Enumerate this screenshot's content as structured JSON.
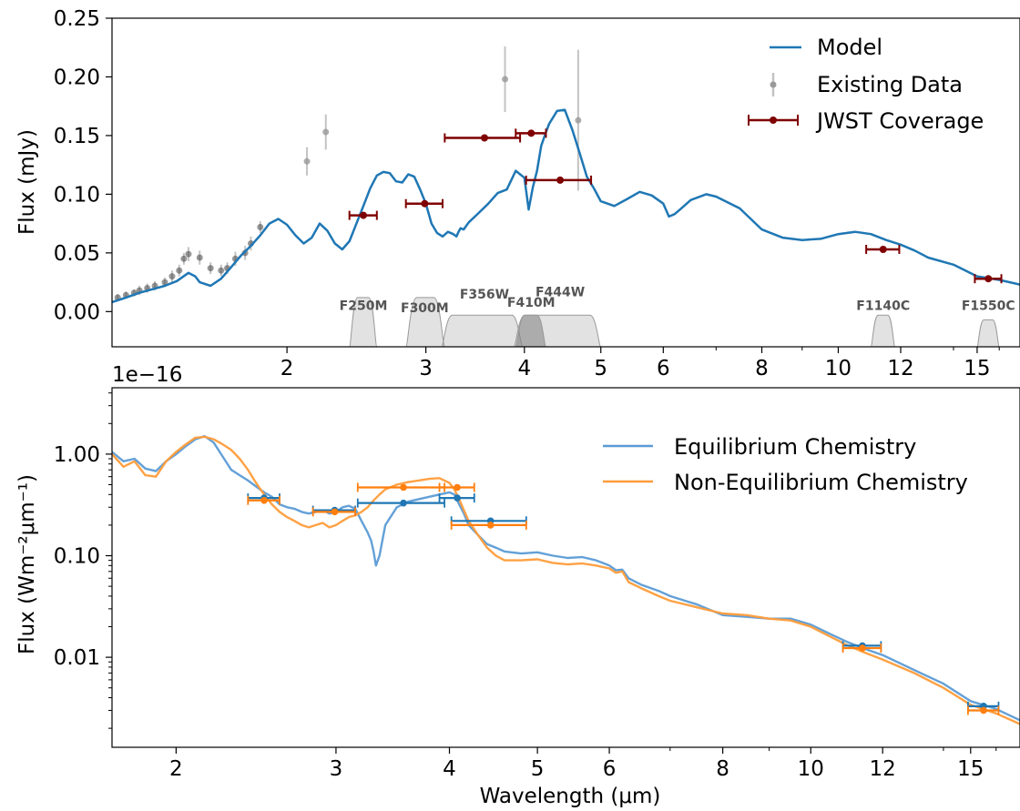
{
  "chart_data": [
    {
      "type": "line",
      "xscale": "log",
      "xlim": [
        1.2,
        17
      ],
      "ylim": [
        -0.03,
        0.25
      ],
      "xticks": [
        2,
        3,
        4,
        5,
        6,
        8,
        10,
        12,
        15
      ],
      "xtick_labels": [
        "2",
        "3",
        "4",
        "5",
        "6",
        "8",
        "10",
        "12",
        "15"
      ],
      "yticks": [
        0.0,
        0.05,
        0.1,
        0.15,
        0.2,
        0.25
      ],
      "ytick_labels": [
        "0.00",
        "0.05",
        "0.10",
        "0.15",
        "0.20",
        "0.25"
      ],
      "ylabel": "Flux (mJy)",
      "legend_position": "upper-right",
      "legend": [
        {
          "label": "Model",
          "kind": "line",
          "color": "#1f77b4"
        },
        {
          "label": "Existing Data",
          "kind": "errorbar",
          "color": "#a0a0a0"
        },
        {
          "label": "JWST Coverage",
          "kind": "xerrorbar",
          "color": "#7f0000"
        }
      ],
      "series": [
        {
          "name": "Model",
          "color": "#1f77b4",
          "x": [
            1.2,
            1.25,
            1.3,
            1.35,
            1.4,
            1.45,
            1.5,
            1.53,
            1.55,
            1.6,
            1.65,
            1.7,
            1.75,
            1.8,
            1.85,
            1.9,
            1.95,
            2.0,
            2.05,
            2.1,
            2.15,
            2.2,
            2.25,
            2.3,
            2.35,
            2.4,
            2.45,
            2.5,
            2.55,
            2.6,
            2.65,
            2.7,
            2.75,
            2.8,
            2.85,
            2.9,
            2.95,
            3.0,
            3.05,
            3.1,
            3.15,
            3.2,
            3.25,
            3.28,
            3.3,
            3.32,
            3.35,
            3.4,
            3.5,
            3.6,
            3.7,
            3.8,
            3.9,
            4.0,
            4.05,
            4.1,
            4.15,
            4.2,
            4.25,
            4.3,
            4.4,
            4.5,
            4.6,
            4.7,
            4.8,
            4.9,
            5.0,
            5.2,
            5.4,
            5.6,
            5.8,
            6.0,
            6.1,
            6.2,
            6.3,
            6.5,
            6.8,
            7.0,
            7.5,
            8.0,
            8.5,
            9.0,
            9.5,
            10.0,
            10.5,
            11.0,
            11.5,
            12.0,
            12.5,
            13.0,
            14.0,
            15.0,
            16.0,
            17.0
          ],
          "y": [
            0.008,
            0.012,
            0.016,
            0.019,
            0.022,
            0.026,
            0.033,
            0.03,
            0.025,
            0.022,
            0.028,
            0.038,
            0.048,
            0.056,
            0.065,
            0.075,
            0.079,
            0.074,
            0.065,
            0.058,
            0.063,
            0.075,
            0.069,
            0.058,
            0.053,
            0.06,
            0.075,
            0.09,
            0.105,
            0.116,
            0.119,
            0.118,
            0.111,
            0.11,
            0.117,
            0.115,
            0.104,
            0.092,
            0.075,
            0.067,
            0.064,
            0.068,
            0.066,
            0.064,
            0.068,
            0.071,
            0.07,
            0.076,
            0.084,
            0.092,
            0.101,
            0.104,
            0.12,
            0.114,
            0.087,
            0.106,
            0.12,
            0.141,
            0.151,
            0.16,
            0.171,
            0.172,
            0.155,
            0.135,
            0.115,
            0.105,
            0.094,
            0.09,
            0.096,
            0.102,
            0.099,
            0.092,
            0.081,
            0.083,
            0.087,
            0.095,
            0.1,
            0.098,
            0.088,
            0.07,
            0.063,
            0.061,
            0.062,
            0.066,
            0.068,
            0.066,
            0.061,
            0.057,
            0.052,
            0.046,
            0.04,
            0.03,
            0.027,
            0.023
          ]
        }
      ],
      "existing_data": {
        "x": [
          1.22,
          1.25,
          1.28,
          1.3,
          1.33,
          1.36,
          1.4,
          1.43,
          1.46,
          1.48,
          1.5,
          1.55,
          1.6,
          1.65,
          1.68,
          1.72,
          1.77,
          1.8,
          1.85,
          2.12,
          2.24,
          3.78,
          4.68
        ],
        "y": [
          0.012,
          0.014,
          0.016,
          0.018,
          0.02,
          0.022,
          0.025,
          0.03,
          0.035,
          0.045,
          0.049,
          0.046,
          0.037,
          0.035,
          0.037,
          0.045,
          0.05,
          0.058,
          0.072,
          0.128,
          0.153,
          0.198,
          0.163
        ],
        "yerr": [
          0.003,
          0.003,
          0.003,
          0.004,
          0.004,
          0.004,
          0.004,
          0.005,
          0.005,
          0.005,
          0.006,
          0.006,
          0.005,
          0.005,
          0.005,
          0.006,
          0.006,
          0.006,
          0.005,
          0.012,
          0.015,
          0.028,
          0.06
        ]
      },
      "jwst_coverage": {
        "x": [
          2.5,
          2.99,
          3.56,
          4.08,
          4.44,
          11.4,
          15.5
        ],
        "y": [
          0.082,
          0.092,
          0.148,
          0.152,
          0.112,
          0.053,
          0.028
        ],
        "xerr_low": [
          0.1,
          0.16,
          0.39,
          0.18,
          0.42,
          0.55,
          0.6
        ],
        "xerr_high": [
          0.1,
          0.16,
          0.39,
          0.18,
          0.42,
          0.55,
          0.6
        ]
      },
      "filters": [
        {
          "name": "F250M",
          "lo": 2.4,
          "hi": 2.6,
          "label_x": 2.5
        },
        {
          "name": "F300M",
          "lo": 2.83,
          "hi": 3.17,
          "label_x": 2.99
        },
        {
          "name": "F356W",
          "lo": 3.14,
          "hi": 3.98,
          "label_x": 3.56
        },
        {
          "name": "F410M",
          "lo": 3.9,
          "hi": 4.26,
          "label_x": 4.08
        },
        {
          "name": "F444W",
          "lo": 3.88,
          "hi": 5.0,
          "label_x": 4.44
        },
        {
          "name": "F1140C",
          "lo": 11.0,
          "hi": 11.8,
          "label_x": 11.4
        },
        {
          "name": "F1550C",
          "lo": 15.0,
          "hi": 16.0,
          "label_x": 15.5
        }
      ]
    },
    {
      "type": "line",
      "xscale": "log",
      "yscale": "log",
      "xlim": [
        1.7,
        17
      ],
      "ylim": [
        0.0013,
        4.5
      ],
      "xticks": [
        2,
        3,
        4,
        5,
        6,
        8,
        10,
        12,
        15
      ],
      "xtick_labels": [
        "2",
        "3",
        "4",
        "5",
        "6",
        "8",
        "10",
        "12",
        "15"
      ],
      "yticks": [
        0.01,
        0.1,
        1.0
      ],
      "ytick_labels": [
        "0.01",
        "0.10",
        "1.00"
      ],
      "offset_text": "1e−16",
      "xlabel": "Wavelength (μm)",
      "ylabel": "Flux (Wm⁻²μm⁻¹)",
      "legend_position": "upper-right",
      "series": [
        {
          "name": "Equilibrium Chemistry",
          "color": "#5b9bd5",
          "x": [
            1.7,
            1.75,
            1.8,
            1.85,
            1.9,
            1.95,
            2.0,
            2.05,
            2.1,
            2.15,
            2.2,
            2.25,
            2.3,
            2.35,
            2.4,
            2.45,
            2.5,
            2.55,
            2.6,
            2.65,
            2.7,
            2.75,
            2.8,
            2.85,
            2.9,
            2.95,
            3.0,
            3.05,
            3.1,
            3.15,
            3.2,
            3.25,
            3.28,
            3.3,
            3.32,
            3.35,
            3.4,
            3.5,
            3.6,
            3.7,
            3.8,
            3.9,
            4.0,
            4.05,
            4.1,
            4.15,
            4.2,
            4.3,
            4.4,
            4.5,
            4.6,
            4.8,
            5.0,
            5.2,
            5.4,
            5.6,
            5.8,
            6.0,
            6.1,
            6.2,
            6.3,
            6.5,
            6.8,
            7.0,
            7.5,
            8.0,
            8.5,
            9.0,
            9.5,
            10.0,
            10.5,
            11.0,
            11.5,
            12.0,
            13.0,
            14.0,
            15.0,
            16.0,
            17.0
          ],
          "y": [
            1.05,
            0.85,
            0.9,
            0.72,
            0.68,
            0.85,
            1.0,
            1.2,
            1.4,
            1.5,
            1.3,
            0.95,
            0.7,
            0.62,
            0.55,
            0.48,
            0.42,
            0.38,
            0.32,
            0.3,
            0.29,
            0.27,
            0.26,
            0.27,
            0.28,
            0.26,
            0.27,
            0.3,
            0.31,
            0.29,
            0.22,
            0.17,
            0.14,
            0.11,
            0.08,
            0.1,
            0.2,
            0.3,
            0.34,
            0.36,
            0.38,
            0.4,
            0.42,
            0.4,
            0.32,
            0.26,
            0.2,
            0.16,
            0.13,
            0.12,
            0.11,
            0.105,
            0.108,
            0.1,
            0.095,
            0.097,
            0.09,
            0.08,
            0.072,
            0.073,
            0.06,
            0.052,
            0.045,
            0.04,
            0.033,
            0.026,
            0.025,
            0.024,
            0.024,
            0.021,
            0.017,
            0.014,
            0.012,
            0.0105,
            0.0075,
            0.0055,
            0.0037,
            0.0031,
            0.0024
          ]
        },
        {
          "name": "Non-Equilibrium Chemistry",
          "color": "#ff9c3a",
          "x": [
            1.7,
            1.75,
            1.8,
            1.85,
            1.9,
            1.95,
            2.0,
            2.05,
            2.1,
            2.15,
            2.2,
            2.25,
            2.3,
            2.35,
            2.4,
            2.45,
            2.5,
            2.55,
            2.6,
            2.65,
            2.7,
            2.75,
            2.8,
            2.85,
            2.9,
            2.95,
            3.0,
            3.05,
            3.1,
            3.15,
            3.2,
            3.25,
            3.3,
            3.35,
            3.4,
            3.5,
            3.6,
            3.7,
            3.8,
            3.9,
            4.0,
            4.05,
            4.1,
            4.15,
            4.2,
            4.3,
            4.4,
            4.5,
            4.6,
            4.8,
            5.0,
            5.2,
            5.4,
            5.6,
            5.8,
            6.0,
            6.1,
            6.2,
            6.3,
            6.5,
            6.8,
            7.0,
            7.5,
            8.0,
            8.5,
            9.0,
            9.5,
            10.0,
            10.5,
            11.0,
            11.5,
            12.0,
            13.0,
            14.0,
            15.0,
            16.0,
            17.0
          ],
          "y": [
            1.0,
            0.75,
            0.85,
            0.62,
            0.6,
            0.85,
            1.05,
            1.25,
            1.45,
            1.48,
            1.4,
            1.25,
            1.1,
            0.9,
            0.7,
            0.52,
            0.4,
            0.32,
            0.27,
            0.24,
            0.22,
            0.2,
            0.19,
            0.2,
            0.21,
            0.19,
            0.2,
            0.22,
            0.24,
            0.25,
            0.27,
            0.3,
            0.35,
            0.4,
            0.45,
            0.5,
            0.53,
            0.55,
            0.57,
            0.58,
            0.52,
            0.45,
            0.36,
            0.28,
            0.22,
            0.16,
            0.12,
            0.1,
            0.09,
            0.09,
            0.092,
            0.085,
            0.082,
            0.084,
            0.08,
            0.075,
            0.068,
            0.07,
            0.055,
            0.048,
            0.04,
            0.036,
            0.031,
            0.027,
            0.026,
            0.024,
            0.023,
            0.02,
            0.016,
            0.013,
            0.011,
            0.0095,
            0.007,
            0.005,
            0.0034,
            0.0028,
            0.0022
          ]
        }
      ],
      "errorbars": [
        {
          "series": "Equilibrium Chemistry",
          "x": [
            2.5,
            2.99,
            3.56,
            4.08,
            4.44,
            11.4,
            15.5
          ],
          "y": [
            0.37,
            0.28,
            0.33,
            0.37,
            0.22,
            0.013,
            0.0033
          ],
          "xerr": [
            0.1,
            0.16,
            0.39,
            0.18,
            0.42,
            0.55,
            0.6
          ]
        },
        {
          "series": "Non-Equilibrium Chemistry",
          "x": [
            2.5,
            2.99,
            3.56,
            4.08,
            4.44,
            11.4,
            15.5
          ],
          "y": [
            0.35,
            0.27,
            0.47,
            0.47,
            0.2,
            0.0123,
            0.003
          ],
          "xerr": [
            0.1,
            0.16,
            0.39,
            0.18,
            0.42,
            0.55,
            0.6
          ]
        }
      ]
    }
  ]
}
